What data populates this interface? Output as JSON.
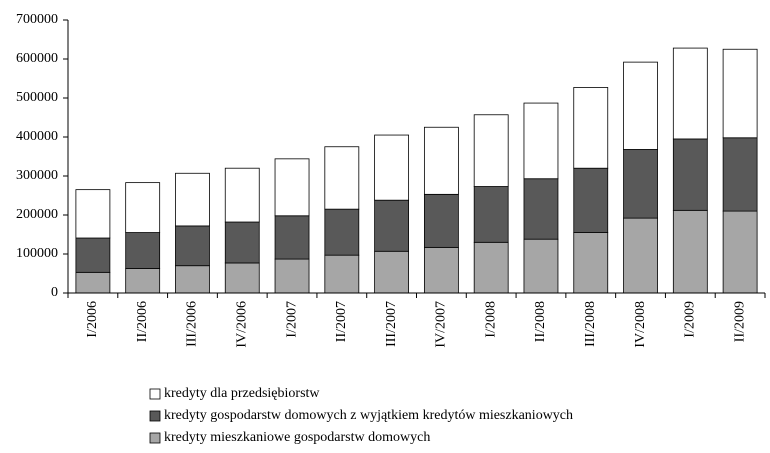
{
  "chart_data": {
    "type": "stacked-bar",
    "categories": [
      "I/2006",
      "II/2006",
      "III/2006",
      "IV/2006",
      "I/2007",
      "II/2007",
      "III/2007",
      "IV/2007",
      "I/2008",
      "II/2008",
      "III/2008",
      "IV/2008",
      "I/2009",
      "II/2009"
    ],
    "series": [
      {
        "name": "kredyty mieszkaniowe gospodarstw domowych",
        "color": "#a6a6a6",
        "values": [
          53000,
          63000,
          70000,
          77000,
          87000,
          97000,
          107000,
          117000,
          130000,
          138000,
          155000,
          192000,
          212000,
          210000
        ]
      },
      {
        "name": "kredyty gospodarstw domowych z wyjątkiem kredytów mieszkaniowych",
        "color": "#595959",
        "values": [
          88000,
          92000,
          102000,
          105000,
          111000,
          118000,
          131000,
          136000,
          143000,
          155000,
          165000,
          176000,
          183000,
          188000
        ]
      },
      {
        "name": "kredyty dla przedsiębiorstw",
        "color": "#ffffff",
        "values": [
          124000,
          128000,
          135000,
          138000,
          146000,
          160000,
          167000,
          172000,
          184000,
          194000,
          207000,
          224000,
          233000,
          227000
        ]
      }
    ],
    "ylim": [
      0,
      700000
    ],
    "yticks": [
      0,
      100000,
      200000,
      300000,
      400000,
      500000,
      600000,
      700000
    ]
  }
}
